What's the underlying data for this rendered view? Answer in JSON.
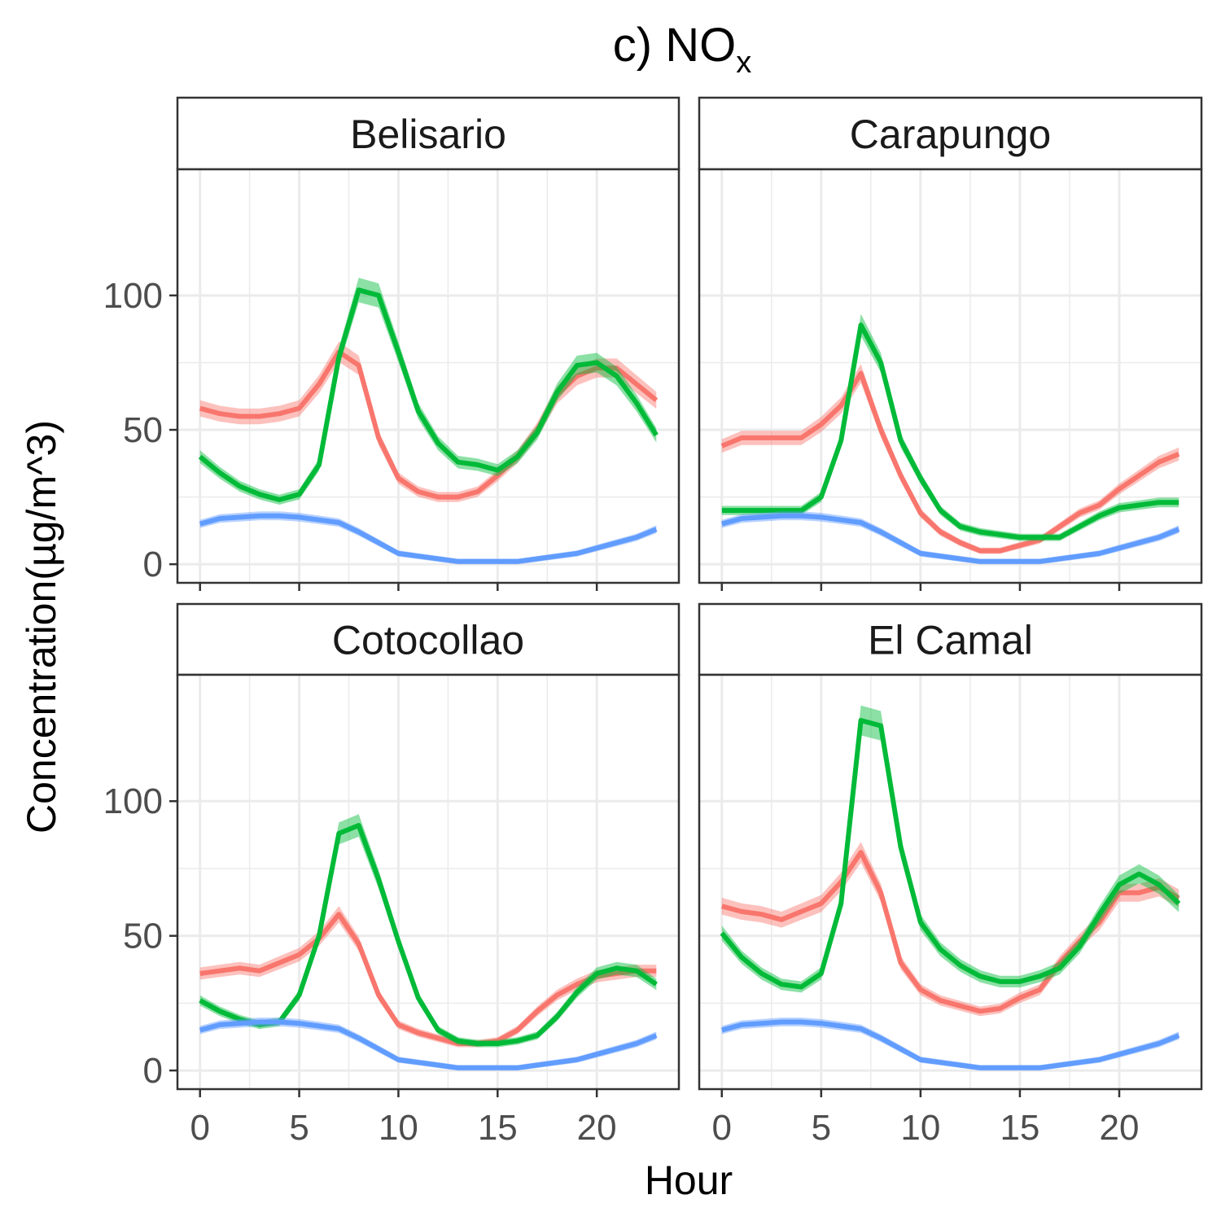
{
  "chart_data": {
    "type": "line",
    "title": "c) NO",
    "title_subscript": "x",
    "xlabel": "Hour",
    "ylabel": "Concentration(µg/m^3)",
    "xlim": [
      0,
      23
    ],
    "ylim": [
      0,
      140
    ],
    "x_ticks": [
      0,
      5,
      10,
      15,
      20
    ],
    "y_ticks": [
      0,
      50,
      100
    ],
    "grid": true,
    "legend": "none",
    "colors": {
      "red": "#F8766D",
      "green": "#00BA38",
      "blue": "#619CFF"
    },
    "x": [
      0,
      1,
      2,
      3,
      4,
      5,
      6,
      7,
      8,
      9,
      10,
      11,
      12,
      13,
      14,
      15,
      16,
      17,
      18,
      19,
      20,
      21,
      22,
      23
    ],
    "panels": [
      {
        "name": "Belisario",
        "series": [
          {
            "color": "#F8766D",
            "values": [
              58,
              56,
              55,
              55,
              56,
              58,
              67,
              79,
              74,
              47,
              32,
              27,
              25,
              25,
              27,
              33,
              40,
              50,
              63,
              70,
              73,
              73,
              67,
              61
            ]
          },
          {
            "color": "#00BA38",
            "values": [
              40,
              34,
              29,
              26,
              24,
              26,
              37,
              77,
              102,
              100,
              79,
              57,
              45,
              38,
              37,
              35,
              40,
              49,
              64,
              74,
              75,
              70,
              60,
              48
            ]
          },
          {
            "color": "#619CFF",
            "values": [
              15,
              17,
              17.5,
              18,
              18,
              17.5,
              16.5,
              15.5,
              12,
              8,
              4,
              3,
              2,
              1,
              1,
              1,
              1,
              2,
              3,
              4,
              6,
              8,
              10,
              13
            ]
          }
        ]
      },
      {
        "name": "Carapungo",
        "series": [
          {
            "color": "#F8766D",
            "values": [
              44,
              47,
              47,
              47,
              47,
              52,
              59,
              71,
              50,
              33,
              19,
              12,
              8,
              5,
              5,
              7,
              9,
              14,
              19,
              22,
              28,
              33,
              38,
              41
            ]
          },
          {
            "color": "#00BA38",
            "values": [
              20,
              20,
              20,
              20,
              20,
              25,
              46,
              89,
              75,
              46,
              32,
              20,
              14,
              12,
              11,
              10,
              10,
              10,
              14,
              18,
              21,
              22,
              23,
              23
            ]
          },
          {
            "color": "#619CFF",
            "values": [
              15,
              17,
              17.5,
              18,
              18,
              17.5,
              16.5,
              15.5,
              12,
              8,
              4,
              3,
              2,
              1,
              1,
              1,
              1,
              2,
              3,
              4,
              6,
              8,
              10,
              13
            ]
          }
        ]
      },
      {
        "name": "Cotocollao",
        "series": [
          {
            "color": "#F8766D",
            "values": [
              36,
              37,
              38,
              37,
              40,
              43,
              49,
              58,
              47,
              28,
              17,
              14,
              12,
              10,
              10,
              11,
              15,
              22,
              28,
              32,
              35,
              36,
              37,
              37
            ]
          },
          {
            "color": "#00BA38",
            "values": [
              26,
              22,
              19,
              17,
              18,
              28,
              50,
              88,
              91,
              71,
              48,
              27,
              15,
              11,
              10,
              10,
              11,
              13,
              20,
              29,
              36,
              38,
              37,
              32
            ]
          },
          {
            "color": "#619CFF",
            "values": [
              15,
              17,
              17.5,
              18,
              18,
              17.5,
              16.5,
              15.5,
              12,
              8,
              4,
              3,
              2,
              1,
              1,
              1,
              1,
              2,
              3,
              4,
              6,
              8,
              10,
              13
            ]
          }
        ]
      },
      {
        "name": "El Camal",
        "series": [
          {
            "color": "#F8766D",
            "values": [
              61,
              59,
              58,
              56,
              59,
              62,
              70,
              81,
              66,
              40,
              30,
              26,
              24,
              22,
              23,
              27,
              30,
              40,
              48,
              55,
              66,
              66,
              68,
              64
            ]
          },
          {
            "color": "#00BA38",
            "values": [
              51,
              42,
              36,
              32,
              31,
              36,
              62,
              130,
              128,
              83,
              55,
              45,
              39,
              35,
              33,
              33,
              35,
              38,
              46,
              58,
              69,
              73,
              69,
              62
            ]
          },
          {
            "color": "#619CFF",
            "values": [
              15,
              17,
              17.5,
              18,
              18,
              17.5,
              16.5,
              15.5,
              12,
              8,
              4,
              3,
              2,
              1,
              1,
              1,
              1,
              2,
              3,
              4,
              6,
              8,
              10,
              13
            ]
          }
        ]
      }
    ]
  }
}
